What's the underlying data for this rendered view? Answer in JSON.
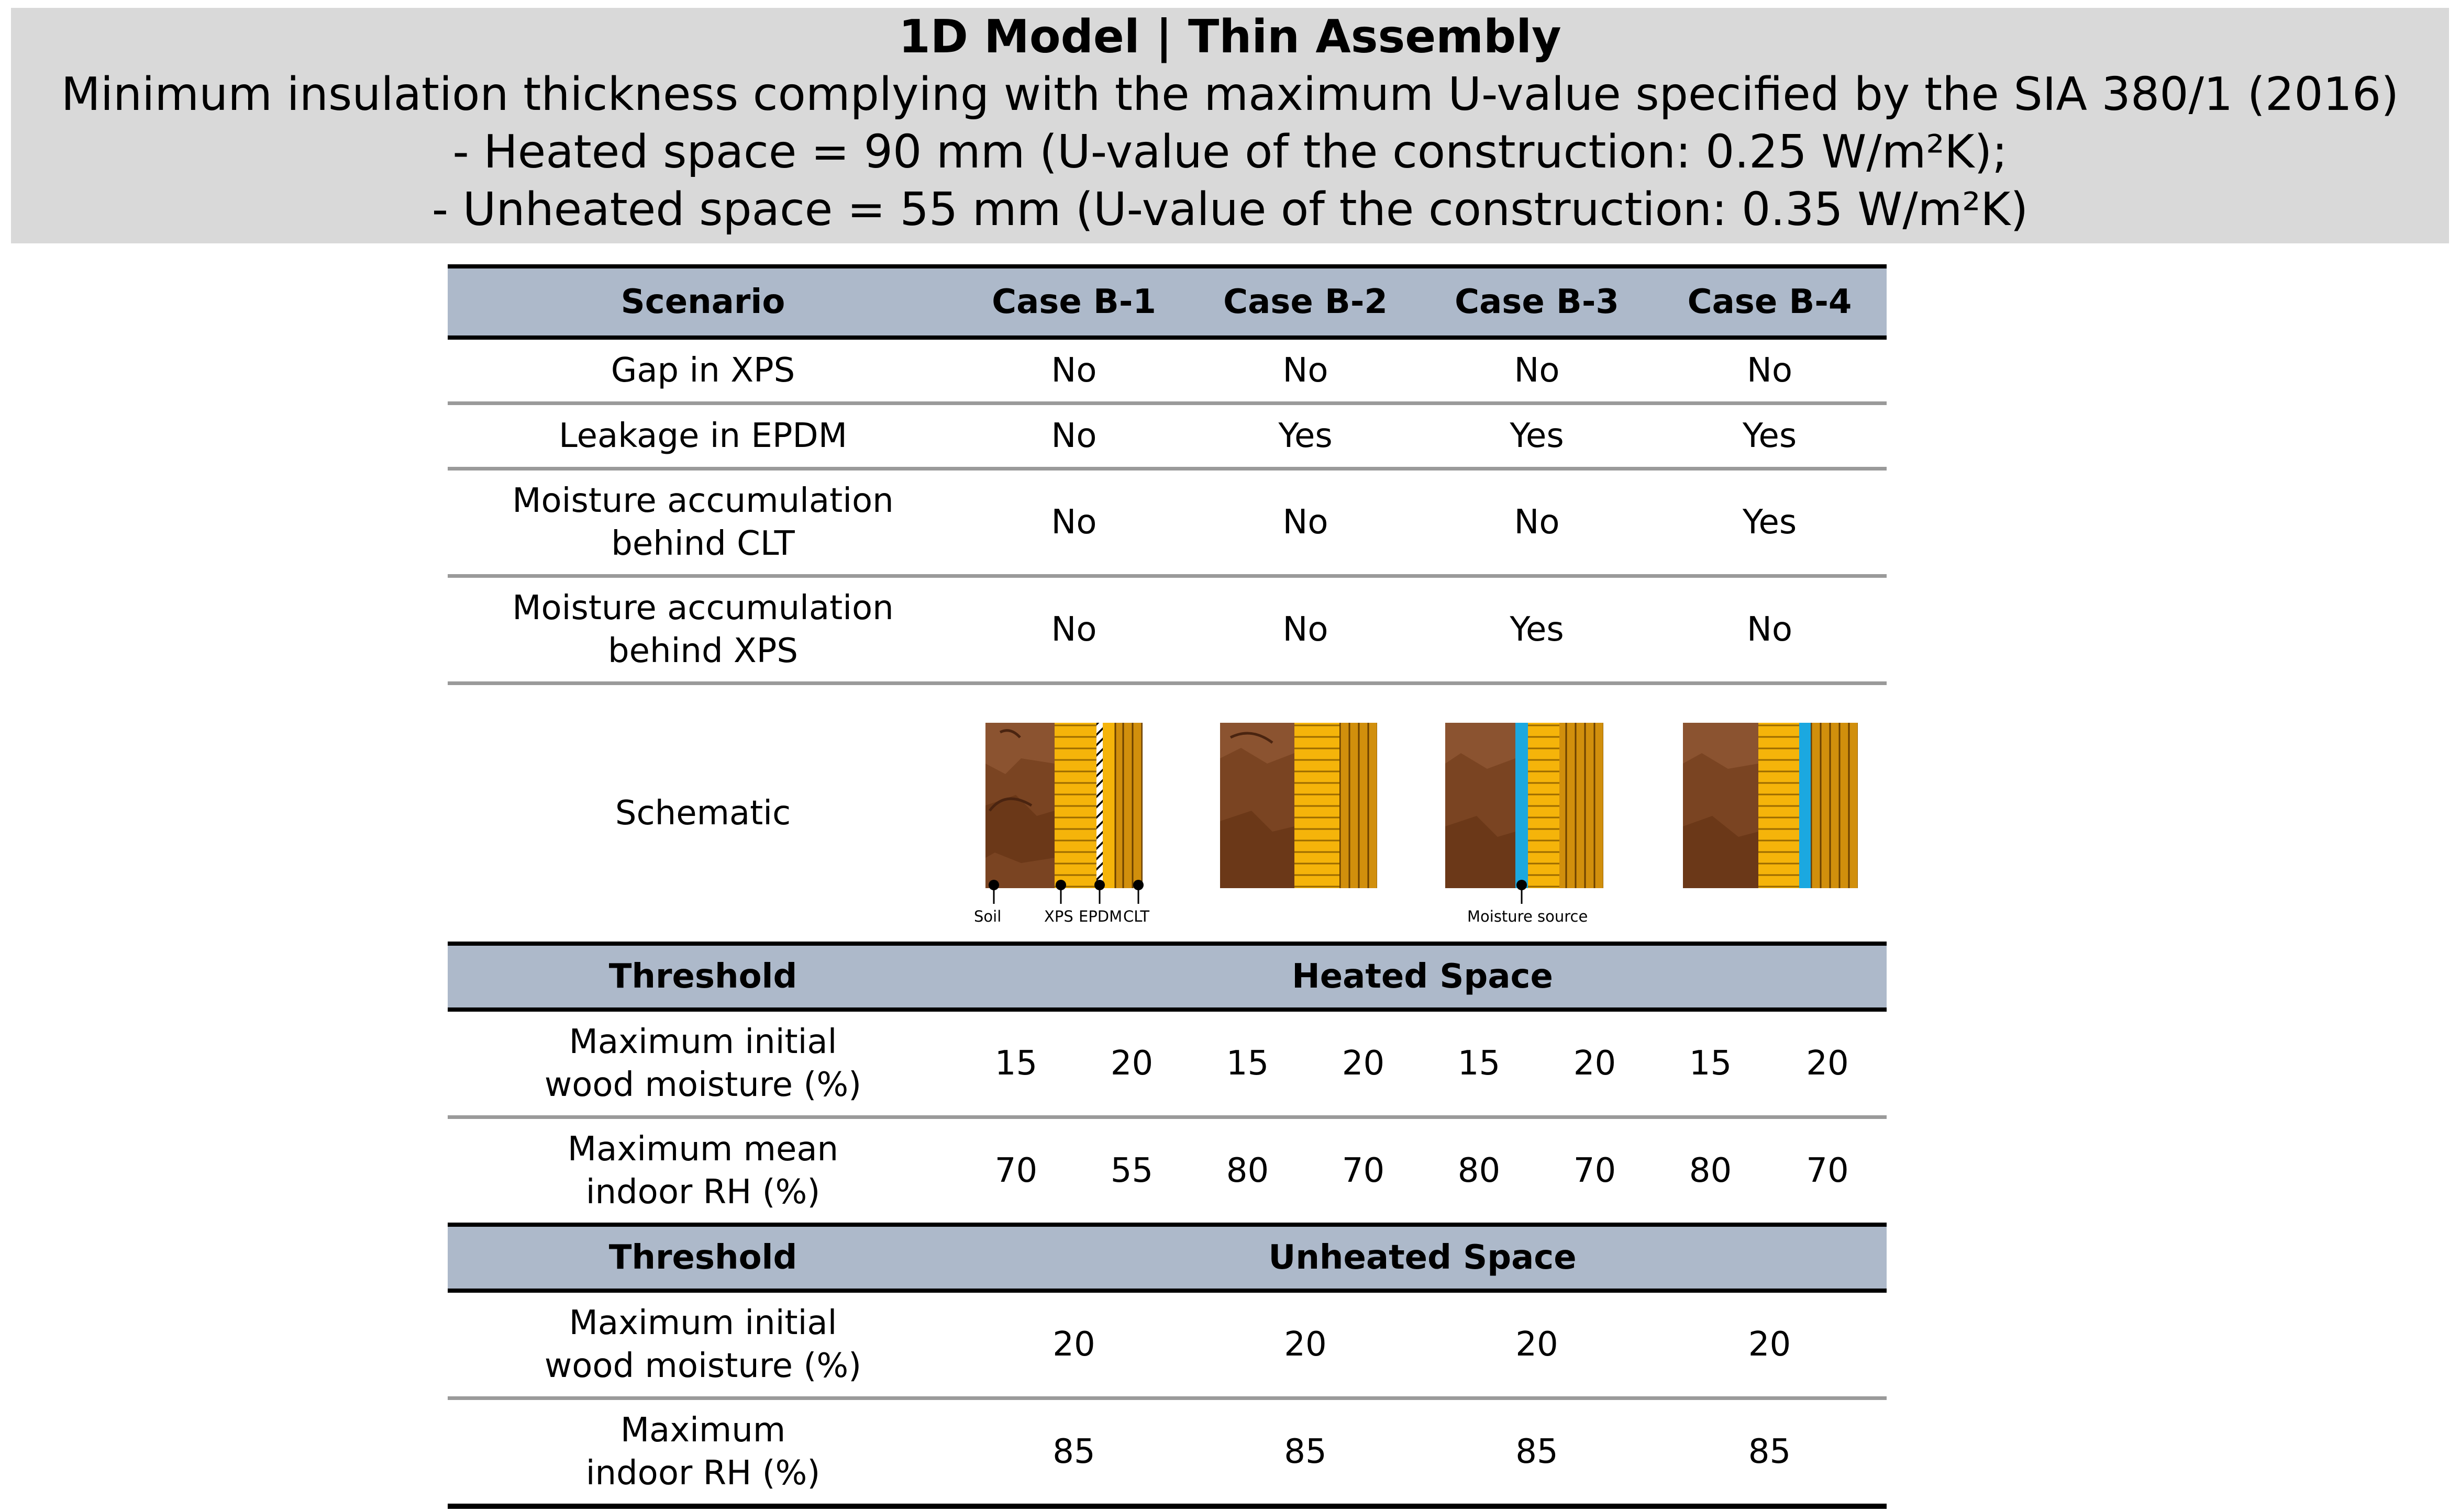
{
  "header": {
    "title": "1D Model | Thin Assembly",
    "subtitle": "Minimum insulation thickness complying with the maximum U-value specified by the SIA 380/1 (2016)",
    "line_heated": "- Heated space = 90 mm (U-value of the construction: 0.25 W/m²K);",
    "line_unheated": "- Unheated space = 55 mm (U-value of the construction: 0.35 W/m²K)"
  },
  "table": {
    "scenario_label": "Scenario",
    "cases": [
      "Case B-1",
      "Case B-2",
      "Case B-3",
      "Case B-4"
    ],
    "rows": [
      {
        "label": [
          "Gap in XPS"
        ],
        "values": [
          "No",
          "No",
          "No",
          "No"
        ]
      },
      {
        "label": [
          "Leakage in EPDM"
        ],
        "values": [
          "No",
          "Yes",
          "Yes",
          "Yes"
        ]
      },
      {
        "label": [
          "Moisture accumulation",
          "behind CLT"
        ],
        "values": [
          "No",
          "No",
          "No",
          "Yes"
        ]
      },
      {
        "label": [
          "Moisture accumulation",
          "behind XPS"
        ],
        "values": [
          "No",
          "No",
          "Yes",
          "No"
        ]
      }
    ],
    "schematic_label": "Schematic",
    "schematic_labels": {
      "soil": "Soil",
      "xps": "XPS",
      "epdm": "EPDM",
      "clt": "CLT",
      "moisture_source": "Moisture source"
    },
    "heated": {
      "threshold_label": "Threshold",
      "space_label": "Heated Space",
      "rows": [
        {
          "label": [
            "Maximum initial",
            "wood moisture (%)"
          ],
          "values": [
            "15",
            "20",
            "15",
            "20",
            "15",
            "20",
            "15",
            "20"
          ]
        },
        {
          "label": [
            "Maximum mean",
            "indoor RH (%)"
          ],
          "values": [
            "70",
            "55",
            "80",
            "70",
            "80",
            "70",
            "80",
            "70"
          ]
        }
      ]
    },
    "unheated": {
      "threshold_label": "Threshold",
      "space_label": "Unheated Space",
      "rows": [
        {
          "label": [
            "Maximum initial",
            "wood moisture (%)"
          ],
          "values": [
            "20",
            "20",
            "20",
            "20"
          ]
        },
        {
          "label": [
            "Maximum",
            "indoor RH (%)"
          ],
          "values": [
            "85",
            "85",
            "85",
            "85"
          ]
        }
      ]
    },
    "colors": {
      "header_fill": "#adb9ca",
      "banner_fill": "#d9d9d9",
      "soil": "#7a4422",
      "xps": "#f5b40a",
      "clt": "#d18f0c",
      "moisture": "#1ba8e0"
    }
  }
}
